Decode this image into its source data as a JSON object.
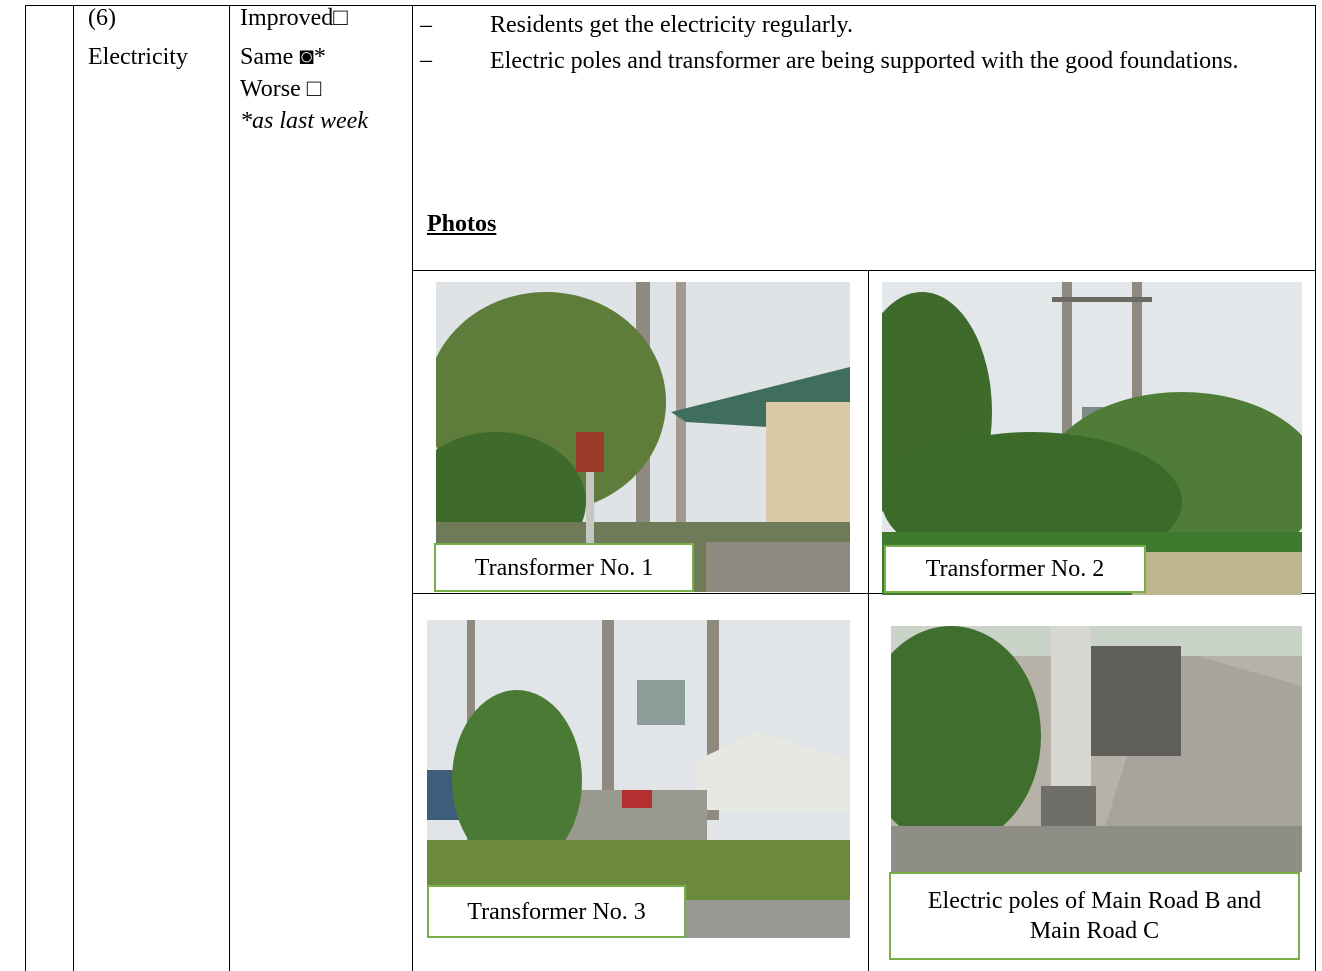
{
  "row": {
    "number": "(6)",
    "item": "Electricity",
    "status": [
      "Improved□",
      "Same ◙*",
      "Worse □"
    ],
    "status_note": "*as last week",
    "bullet_marker": "–",
    "bullets": [
      "Residents get the electricity regularly.",
      "Electric poles and transformer are being supported with the good foundations."
    ],
    "photos_heading": "Photos",
    "photos": [
      {
        "caption": "Transformer No. 1"
      },
      {
        "caption": "Transformer No. 2"
      },
      {
        "caption": "Transformer No. 3"
      },
      {
        "caption": "Electric poles of Main Road B and Main Road C"
      }
    ]
  }
}
